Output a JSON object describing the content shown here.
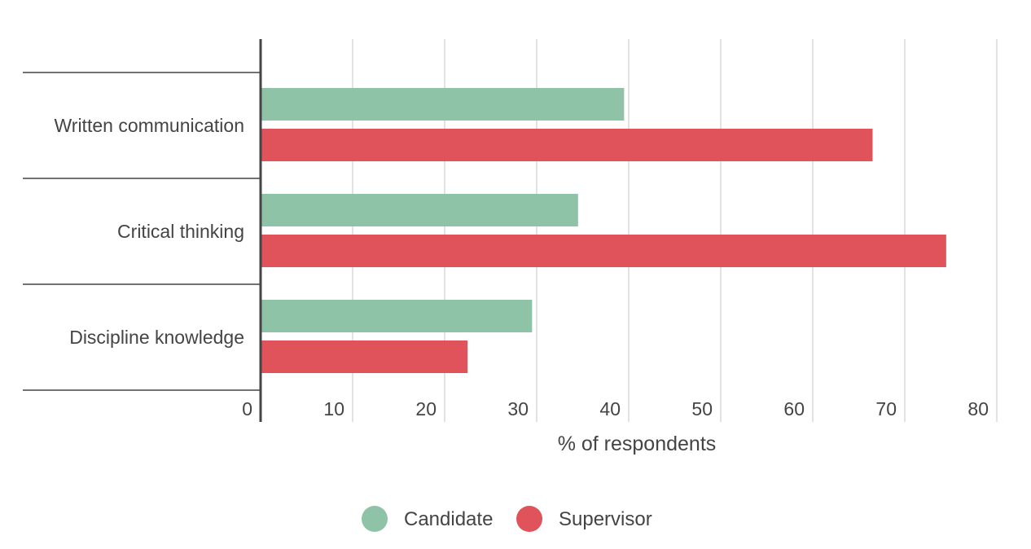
{
  "chart_data": {
    "type": "bar",
    "orientation": "horizontal",
    "categories": [
      "Written communication",
      "Critical thinking",
      "Discipline knowledge"
    ],
    "series": [
      {
        "name": "Candidate",
        "values": [
          39.5,
          34.5,
          29.5
        ],
        "color": "#8fc3a7"
      },
      {
        "name": "Supervisor",
        "values": [
          66.5,
          74.5,
          22.5
        ],
        "color": "#e0535a"
      }
    ],
    "xlabel": "% of respondents",
    "xlim": [
      0,
      80
    ],
    "xticks": [
      0,
      10,
      20,
      30,
      40,
      50,
      60,
      70,
      80
    ],
    "grid": true,
    "legend_position": "bottom"
  }
}
